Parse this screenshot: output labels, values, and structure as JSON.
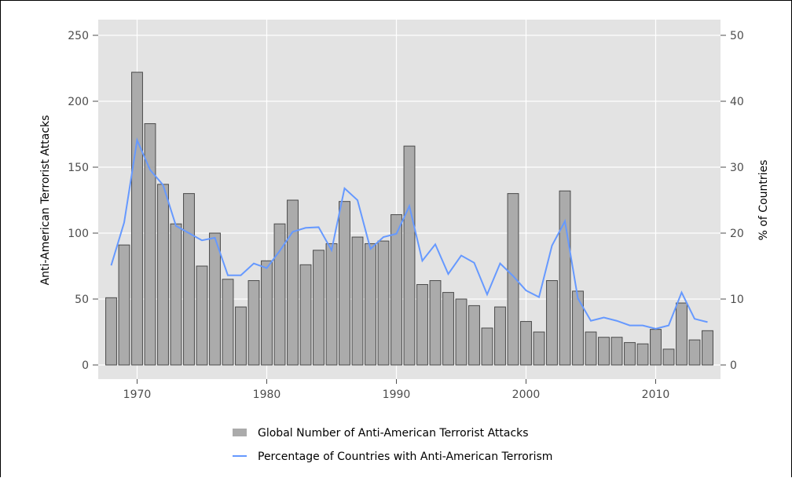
{
  "chart_data": {
    "type": "bar",
    "ylabel": "Anti-American Terrorist Attacks",
    "y2label": "% of Countries",
    "ylim": [
      0,
      250
    ],
    "y2lim": [
      0,
      50
    ],
    "yticks": [
      0,
      50,
      100,
      150,
      200,
      250
    ],
    "y2ticks": [
      0,
      10,
      20,
      30,
      40,
      50
    ],
    "xlim": [
      1967,
      2015
    ],
    "xticks": [
      1970,
      1980,
      1990,
      2000,
      2010
    ],
    "grid": true,
    "legend_position": "bottom",
    "x": [
      1968,
      1969,
      1970,
      1971,
      1972,
      1973,
      1974,
      1975,
      1976,
      1977,
      1978,
      1979,
      1980,
      1981,
      1982,
      1983,
      1984,
      1985,
      1986,
      1987,
      1988,
      1989,
      1990,
      1991,
      1992,
      1993,
      1994,
      1995,
      1996,
      1997,
      1998,
      1999,
      2000,
      2001,
      2002,
      2003,
      2004,
      2005,
      2006,
      2007,
      2008,
      2009,
      2010,
      2011,
      2012,
      2013,
      2014
    ],
    "series": [
      {
        "name": "Global Number of Anti-American Terrorist Attacks",
        "type": "bar",
        "axis": "left",
        "color": "#ababab",
        "values": [
          51,
          91,
          222,
          183,
          137,
          107,
          130,
          75,
          100,
          65,
          44,
          64,
          79,
          107,
          125,
          76,
          87,
          92,
          124,
          97,
          92,
          94,
          114,
          166,
          61,
          64,
          55,
          50,
          45,
          28,
          44,
          130,
          33,
          25,
          64,
          132,
          56,
          25,
          21,
          21,
          17,
          16,
          27,
          12,
          47,
          19,
          26
        ]
      },
      {
        "name": "Percentage of Countries with Anti-American Terrorism",
        "type": "line",
        "axis": "right",
        "color": "#6699ff",
        "values": [
          15.1,
          21.6,
          34.1,
          29.6,
          27.3,
          21.1,
          20.0,
          18.9,
          19.3,
          13.6,
          13.6,
          15.4,
          14.7,
          17.3,
          20.2,
          20.8,
          20.9,
          17.4,
          26.8,
          25.0,
          17.6,
          19.4,
          19.9,
          24.1,
          15.8,
          18.3,
          13.8,
          16.6,
          15.5,
          10.7,
          15.4,
          13.5,
          11.3,
          10.3,
          18.1,
          21.8,
          10.1,
          6.7,
          7.2,
          6.7,
          6.0,
          6.0,
          5.5,
          6.0,
          11.0,
          7.0,
          6.5
        ]
      }
    ]
  }
}
